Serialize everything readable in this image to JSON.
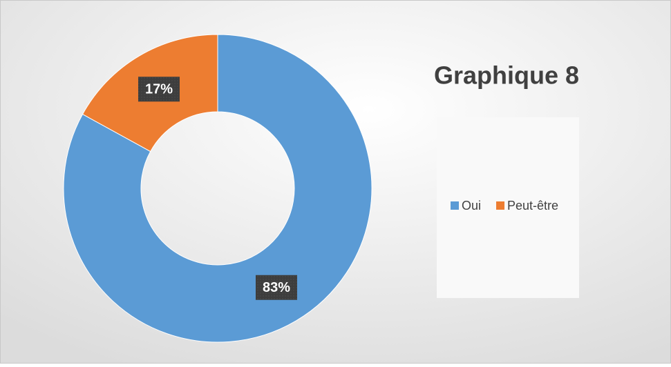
{
  "chart_data": {
    "type": "donut",
    "title": "Graphique 8",
    "categories": [
      "Oui",
      "Peut-être"
    ],
    "values": [
      83,
      17
    ],
    "value_labels": [
      "83%",
      "17%"
    ],
    "colors": [
      "#5b9bd5",
      "#ed7d31"
    ],
    "legend": "right"
  }
}
